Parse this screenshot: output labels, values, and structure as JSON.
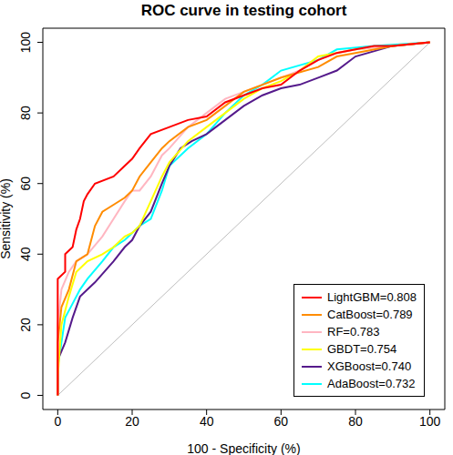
{
  "chart_data": {
    "type": "line",
    "title": "ROC curve in testing cohort",
    "x_label": "100 - Specificity (%)",
    "y_label": "Sensitivity (%)",
    "xlim": [
      -4,
      104
    ],
    "ylim": [
      -4,
      104
    ],
    "xticks": [
      0,
      20,
      40,
      60,
      80,
      100
    ],
    "yticks": [
      0,
      20,
      40,
      60,
      80,
      100
    ],
    "grid": false,
    "legend": "bottom-right",
    "series": [
      {
        "name": "LightGBM=0.808",
        "color": "#FF0000",
        "x": [
          0,
          0,
          0,
          2,
          2,
          4,
          5,
          6,
          7,
          8,
          10,
          15,
          18,
          20,
          22,
          25,
          30,
          35,
          40,
          45,
          50,
          55,
          60,
          65,
          70,
          75,
          80,
          85,
          90,
          100
        ],
        "values": [
          0,
          20,
          33,
          35,
          40,
          42,
          47,
          50,
          55,
          57,
          60,
          62,
          65,
          67,
          70,
          74,
          76,
          78,
          79,
          83,
          85,
          87,
          88,
          92,
          95,
          97,
          98,
          99,
          99,
          100
        ]
      },
      {
        "name": "CatBoost=0.789",
        "color": "#FF8C00",
        "x": [
          0,
          0,
          1,
          3,
          5,
          8,
          10,
          12,
          15,
          18,
          20,
          22,
          25,
          28,
          30,
          35,
          40,
          45,
          50,
          55,
          60,
          70,
          75,
          80,
          90,
          100
        ],
        "values": [
          0,
          15,
          25,
          30,
          38,
          40,
          48,
          52,
          54,
          56,
          58,
          62,
          66,
          70,
          72,
          76,
          78,
          82,
          86,
          88,
          90,
          93,
          96,
          97,
          99,
          100
        ]
      },
      {
        "name": "RF=0.783",
        "color": "#FFB6C1",
        "x": [
          0,
          0,
          1,
          3,
          5,
          8,
          12,
          15,
          18,
          20,
          22,
          25,
          28,
          30,
          35,
          40,
          45,
          50,
          55,
          60,
          65,
          70,
          75,
          80,
          90,
          100
        ],
        "values": [
          0,
          20,
          30,
          35,
          38,
          40,
          45,
          50,
          55,
          58,
          58,
          62,
          68,
          70,
          76,
          80,
          84,
          86,
          88,
          90,
          92,
          95,
          97,
          98,
          99,
          100
        ]
      },
      {
        "name": "GBDT=0.754",
        "color": "#FFFF00",
        "x": [
          0,
          0,
          1,
          3,
          5,
          8,
          12,
          15,
          18,
          20,
          22,
          25,
          28,
          30,
          35,
          40,
          45,
          50,
          55,
          60,
          65,
          70,
          80,
          90,
          100
        ],
        "values": [
          0,
          5,
          20,
          28,
          35,
          38,
          40,
          42,
          45,
          46,
          48,
          55,
          62,
          66,
          72,
          76,
          80,
          84,
          87,
          89,
          92,
          96,
          98,
          99,
          100
        ]
      },
      {
        "name": "XGBoost=0.740",
        "color": "#551A8B",
        "x": [
          0,
          0,
          2,
          4,
          6,
          8,
          10,
          15,
          18,
          20,
          22,
          25,
          28,
          30,
          33,
          36,
          40,
          45,
          50,
          55,
          60,
          65,
          70,
          75,
          80,
          90,
          100
        ],
        "values": [
          0,
          10,
          15,
          22,
          28,
          30,
          32,
          38,
          42,
          44,
          48,
          52,
          60,
          65,
          70,
          72,
          74,
          78,
          82,
          85,
          87,
          88,
          90,
          92,
          96,
          99,
          100
        ]
      },
      {
        "name": "AdaBoost=0.732",
        "color": "#00FFFF",
        "x": [
          0,
          0,
          1,
          2,
          4,
          6,
          8,
          12,
          15,
          18,
          20,
          22,
          25,
          28,
          30,
          35,
          40,
          45,
          50,
          55,
          60,
          70,
          75,
          85,
          100
        ],
        "values": [
          0,
          8,
          15,
          22,
          26,
          30,
          33,
          38,
          42,
          44,
          46,
          48,
          50,
          58,
          65,
          70,
          74,
          80,
          85,
          88,
          92,
          95,
          98,
          99,
          100
        ]
      }
    ]
  }
}
